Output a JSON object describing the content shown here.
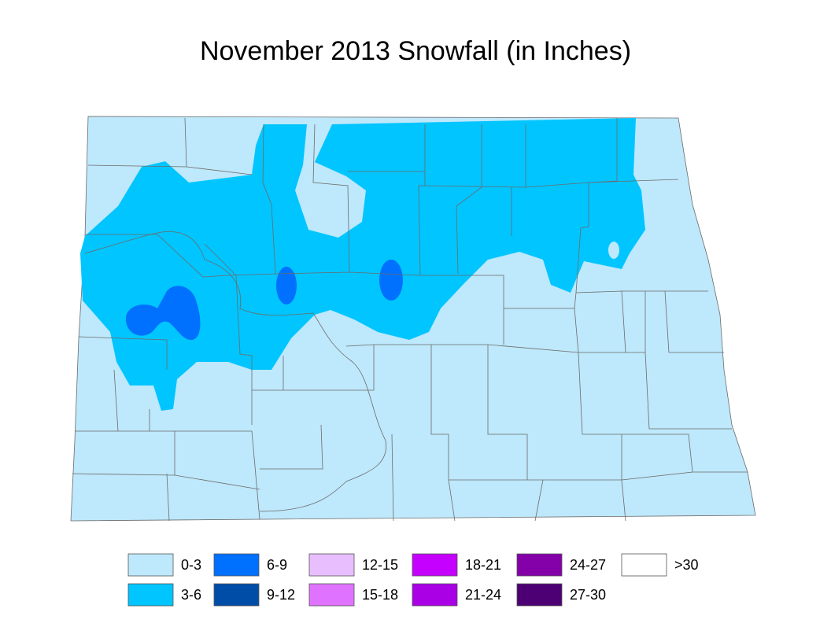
{
  "title": "November 2013 Snowfall (in Inches)",
  "legend": [
    {
      "label": "0-3",
      "color": "#bee8fb"
    },
    {
      "label": "3-6",
      "color": "#00c5ff"
    },
    {
      "label": "6-9",
      "color": "#0070ff"
    },
    {
      "label": "9-12",
      "color": "#004da8"
    },
    {
      "label": "12-15",
      "color": "#e8beff"
    },
    {
      "label": "15-18",
      "color": "#df73ff"
    },
    {
      "label": "18-21",
      "color": "#c500ff"
    },
    {
      "label": "21-24",
      "color": "#a900e6"
    },
    {
      "label": "24-27",
      "color": "#8400a8"
    },
    {
      "label": "27-30",
      "color": "#4c0073"
    },
    {
      "label": ">30",
      "color": "#ffffff"
    }
  ]
}
